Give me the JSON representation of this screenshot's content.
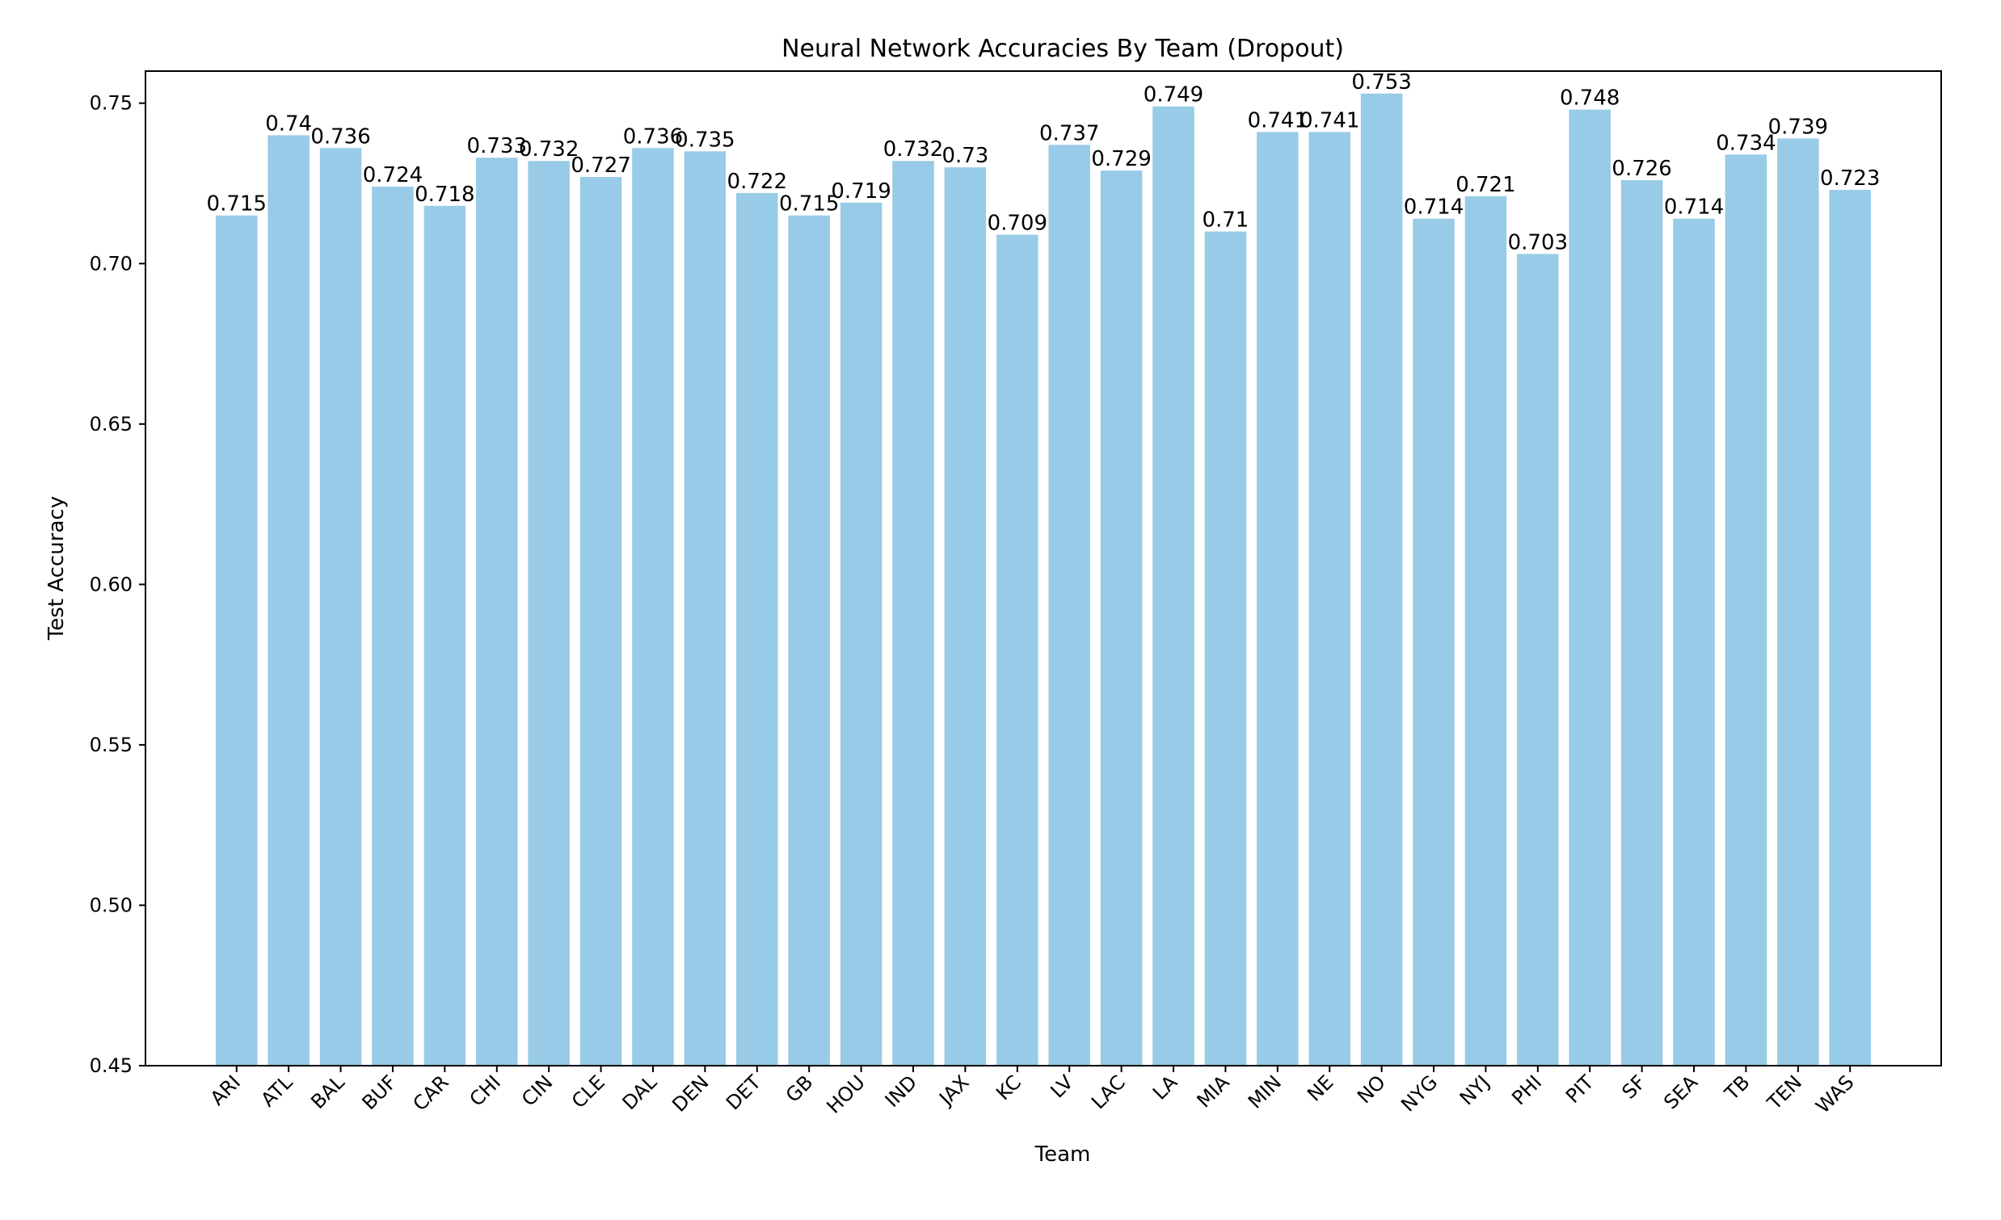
{
  "chart_data": {
    "type": "bar",
    "title": "Neural Network Accuracies By Team (Dropout)",
    "xlabel": "Team",
    "ylabel": "Test Accuracy",
    "ylim": [
      0.45,
      0.76
    ],
    "yticks": [
      0.45,
      0.5,
      0.55,
      0.6,
      0.65,
      0.7,
      0.75
    ],
    "ytick_labels": [
      "0.45",
      "0.50",
      "0.55",
      "0.60",
      "0.65",
      "0.70",
      "0.75"
    ],
    "grid": false,
    "bar_color": "#98cbe7",
    "categories": [
      "ARI",
      "ATL",
      "BAL",
      "BUF",
      "CAR",
      "CHI",
      "CIN",
      "CLE",
      "DAL",
      "DEN",
      "DET",
      "GB",
      "HOU",
      "IND",
      "JAX",
      "KC",
      "LV",
      "LAC",
      "LA",
      "MIA",
      "MIN",
      "NE",
      "NO",
      "NYG",
      "NYJ",
      "PHI",
      "PIT",
      "SF",
      "SEA",
      "TB",
      "TEN",
      "WAS"
    ],
    "values": [
      0.715,
      0.74,
      0.736,
      0.724,
      0.718,
      0.733,
      0.732,
      0.727,
      0.736,
      0.735,
      0.722,
      0.715,
      0.719,
      0.732,
      0.73,
      0.709,
      0.737,
      0.729,
      0.749,
      0.71,
      0.741,
      0.741,
      0.753,
      0.714,
      0.721,
      0.703,
      0.748,
      0.726,
      0.714,
      0.734,
      0.739,
      0.723
    ],
    "value_labels": [
      "0.715",
      "0.74",
      "0.736",
      "0.724",
      "0.718",
      "0.733",
      "0.732",
      "0.727",
      "0.736",
      "0.735",
      "0.722",
      "0.715",
      "0.719",
      "0.732",
      "0.73",
      "0.709",
      "0.737",
      "0.729",
      "0.749",
      "0.71",
      "0.741",
      "0.741",
      "0.753",
      "0.714",
      "0.721",
      "0.703",
      "0.748",
      "0.726",
      "0.714",
      "0.734",
      "0.739",
      "0.723"
    ]
  }
}
